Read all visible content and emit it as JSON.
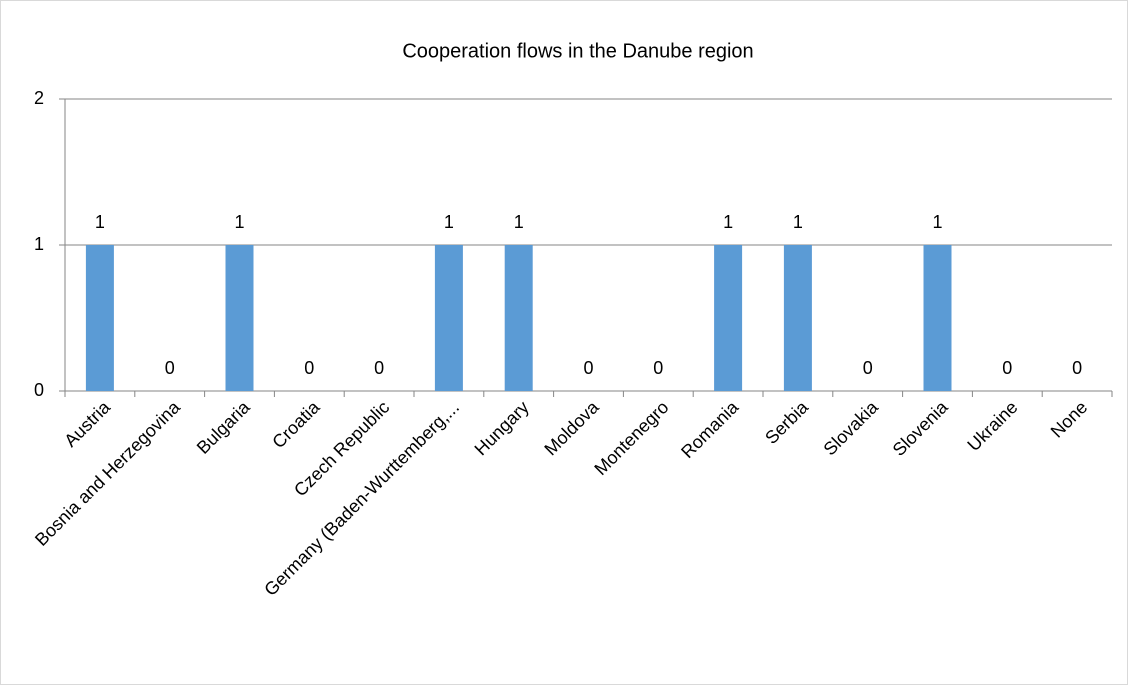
{
  "chart_data": {
    "type": "bar",
    "title": "Cooperation flows in the Danube region",
    "categories": [
      "Austria",
      "Bosnia and Herzegovina",
      "Bulgaria",
      "Croatia",
      "Czech Republic",
      "Germany (Baden-Wurttemberg,...",
      "Hungary",
      "Moldova",
      "Montenegro",
      "Romania",
      "Serbia",
      "Slovakia",
      "Slovenia",
      "Ukraine",
      "None"
    ],
    "values": [
      1,
      0,
      1,
      0,
      0,
      1,
      1,
      0,
      0,
      1,
      1,
      0,
      1,
      0,
      0
    ],
    "color": "#5b9bd5",
    "ylim": [
      0,
      2
    ],
    "yticks": [
      0,
      1,
      2
    ],
    "grid": true
  }
}
